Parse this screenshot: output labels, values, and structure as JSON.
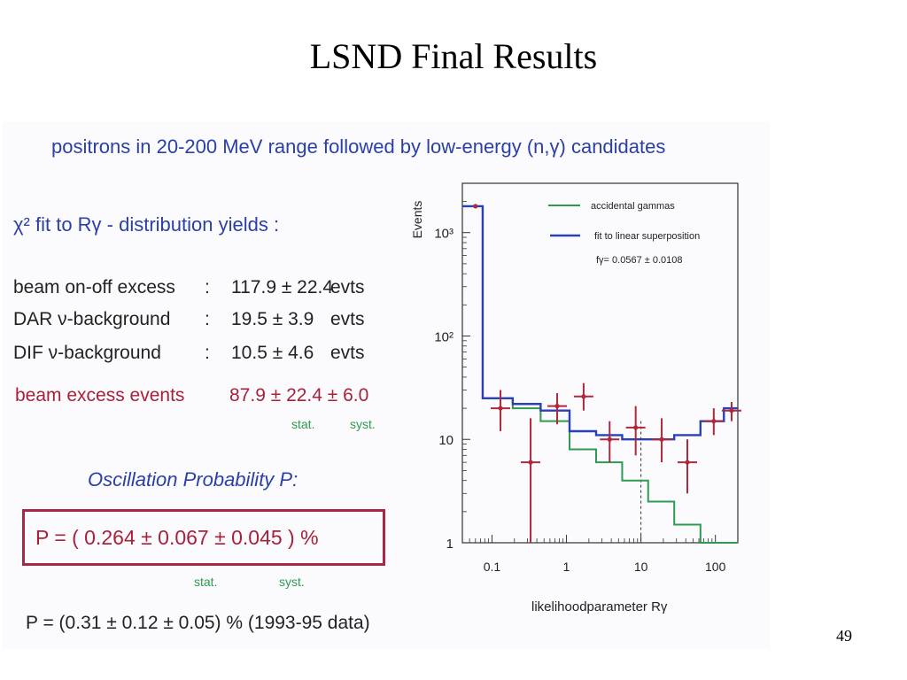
{
  "slide": {
    "title": "LSND Final Results",
    "page_number": "49"
  },
  "left_panel": {
    "headline": "positrons in 20-200 MeV range followed by low-energy (n,γ) candidates",
    "chi_line": "χ² fit to Rγ - distribution yields :",
    "rows": [
      {
        "label": "beam on-off excess",
        "colon": ":",
        "value": "117.9 ± 22.4",
        "unit": "evts"
      },
      {
        "label": "DAR ν-background",
        "colon": ":",
        "value": "19.5 ± 3.9",
        "unit": "evts"
      },
      {
        "label": "DIF   ν-background",
        "colon": ":",
        "value": "10.5 ± 4.6",
        "unit": "evts"
      }
    ],
    "excess_label": "beam excess events",
    "excess_value": "87.9 ± 22.4 ± 6.0",
    "stat_label": "stat.",
    "syst_label": "syst.",
    "osc_title": "Oscillation Probability P:",
    "p_formula": "P = ( 0.264 ±  0.067 ±  0.045 ) %",
    "p_stat_label": "stat.",
    "p_syst_label": "syst.",
    "old_result": "P = (0.31 ± 0.12 ± 0.05) %   (1993-95 data)"
  },
  "chart_data": {
    "type": "line",
    "title": "",
    "xlabel": "likelihoodparameter Rγ",
    "ylabel": "Events",
    "x_scale": "log",
    "y_scale": "log",
    "xlim": [
      0.04,
      200
    ],
    "ylim": [
      1,
      3000
    ],
    "x_ticks": [
      0.1,
      1,
      10,
      100
    ],
    "x_tick_labels": [
      "0.1",
      "1",
      "10",
      "100"
    ],
    "y_ticks": [
      1,
      10,
      100,
      1000
    ],
    "y_tick_labels": [
      "1",
      "10",
      "10²",
      "10³"
    ],
    "bin_edges": [
      0.04,
      0.075,
      0.19,
      0.45,
      1.1,
      2.5,
      5.6,
      12.5,
      28,
      63,
      130,
      200
    ],
    "series": [
      {
        "name": "accidental gammas",
        "color": "#2f9a52",
        "values": [
          1800,
          25,
          20,
          15,
          8,
          6,
          4,
          2.5,
          1.5,
          1,
          1
        ]
      },
      {
        "name": "fit to linear superposition",
        "color": "#2b40b8",
        "values": [
          1800,
          25,
          22,
          19,
          12,
          11,
          10,
          10,
          11,
          15,
          20
        ]
      }
    ],
    "data_points": [
      {
        "x": 0.06,
        "y": 1800
      },
      {
        "x": 0.13,
        "y": 20,
        "yerr_lo": 8,
        "yerr_hi": 10
      },
      {
        "x": 0.33,
        "y": 6,
        "yerr_lo": 6,
        "yerr_hi": 10
      },
      {
        "x": 0.75,
        "y": 21,
        "yerr_lo": 7,
        "yerr_hi": 7
      },
      {
        "x": 1.7,
        "y": 26,
        "yerr_lo": 7,
        "yerr_hi": 9
      },
      {
        "x": 3.8,
        "y": 10,
        "yerr_lo": 4,
        "yerr_hi": 5
      },
      {
        "x": 8.5,
        "y": 13,
        "yerr_lo": 6,
        "yerr_hi": 8
      },
      {
        "x": 19,
        "y": 10,
        "yerr_lo": 4,
        "yerr_hi": 6
      },
      {
        "x": 42,
        "y": 6,
        "yerr_lo": 3,
        "yerr_hi": 4
      },
      {
        "x": 95,
        "y": 15,
        "yerr_lo": 4,
        "yerr_hi": 5
      },
      {
        "x": 165,
        "y": 19,
        "yerr_lo": 4,
        "yerr_hi": 4
      }
    ],
    "point_color": "#b0283c",
    "cut_line_x": 10,
    "legend": {
      "placement": "top-right",
      "annotation": "fγ= 0.0567 ± 0.0108"
    }
  }
}
